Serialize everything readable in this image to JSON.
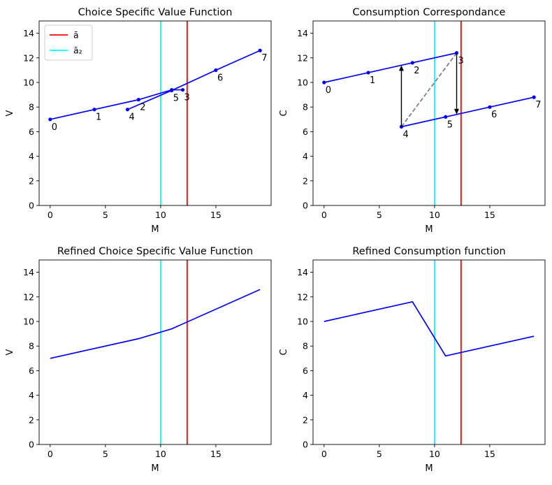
{
  "chart_data": [
    {
      "type": "line",
      "title": "Choice Specific Value Function",
      "xlabel": "M",
      "ylabel": "V",
      "xlim": [
        -1,
        20
      ],
      "ylim": [
        0,
        15
      ],
      "xticks": [
        0,
        5,
        10,
        15
      ],
      "yticks": [
        0,
        2,
        4,
        6,
        8,
        10,
        12,
        14
      ],
      "vlines": [
        {
          "x": 12.4,
          "color": "#ff0000",
          "legend_label": "ā"
        },
        {
          "x": 10,
          "color": "#00ffff",
          "legend_label": "ā₂"
        }
      ],
      "legend": {
        "position": "top-left"
      },
      "series": [
        {
          "color": "#0000ff",
          "marker": "dot",
          "x": [
            0,
            4,
            8,
            11,
            12
          ],
          "y": [
            7.0,
            7.8,
            8.6,
            9.4,
            9.4
          ]
        },
        {
          "color": "#0000ff",
          "marker": "dot",
          "x": [
            7,
            11,
            15,
            19
          ],
          "y": [
            7.8,
            9.35,
            11.0,
            12.6
          ]
        }
      ],
      "point_labels": [
        {
          "text": "0",
          "x": 0,
          "y": 7.0
        },
        {
          "text": "1",
          "x": 4,
          "y": 7.8
        },
        {
          "text": "2",
          "x": 8,
          "y": 8.6
        },
        {
          "text": "3",
          "x": 12,
          "y": 9.4
        },
        {
          "text": "4",
          "x": 7,
          "y": 7.8
        },
        {
          "text": "5",
          "x": 11,
          "y": 9.35
        },
        {
          "text": "6",
          "x": 15,
          "y": 11.0
        },
        {
          "text": "7",
          "x": 19,
          "y": 12.6
        }
      ]
    },
    {
      "type": "line",
      "title": "Consumption Correspondance",
      "xlabel": "M",
      "ylabel": "C",
      "xlim": [
        -1,
        20
      ],
      "ylim": [
        0,
        15
      ],
      "xticks": [
        0,
        5,
        10,
        15
      ],
      "yticks": [
        0,
        2,
        4,
        6,
        8,
        10,
        12,
        14
      ],
      "vlines": [
        {
          "x": 12.4,
          "color": "#ff0000"
        },
        {
          "x": 10,
          "color": "#00ffff"
        }
      ],
      "series": [
        {
          "color": "#0000ff",
          "marker": "dot",
          "x": [
            0,
            4,
            8,
            12
          ],
          "y": [
            10.0,
            10.8,
            11.6,
            12.4
          ]
        },
        {
          "color": "#0000ff",
          "marker": "dot",
          "x": [
            7,
            11,
            15,
            19
          ],
          "y": [
            6.4,
            7.2,
            8.0,
            8.8
          ]
        }
      ],
      "dashed_lines": [
        {
          "color": "#808080",
          "x": [
            7,
            12
          ],
          "y": [
            6.4,
            12.4
          ]
        }
      ],
      "arrows": [
        {
          "x": 7,
          "y_from": 6.4,
          "y_to": 11.4
        },
        {
          "x": 12,
          "y_from": 12.4,
          "y_to": 7.4
        }
      ],
      "point_labels": [
        {
          "text": "0",
          "x": 0,
          "y": 10.0
        },
        {
          "text": "1",
          "x": 4,
          "y": 10.8
        },
        {
          "text": "2",
          "x": 8,
          "y": 11.6
        },
        {
          "text": "3",
          "x": 12,
          "y": 12.4
        },
        {
          "text": "4",
          "x": 7,
          "y": 6.4
        },
        {
          "text": "5",
          "x": 11,
          "y": 7.2
        },
        {
          "text": "6",
          "x": 15,
          "y": 8.0
        },
        {
          "text": "7",
          "x": 19,
          "y": 8.8
        }
      ]
    },
    {
      "type": "line",
      "title": "Refined Choice Specific Value Function",
      "xlabel": "M",
      "ylabel": "V",
      "xlim": [
        -1,
        20
      ],
      "ylim": [
        0,
        15
      ],
      "xticks": [
        0,
        5,
        10,
        15
      ],
      "yticks": [
        0,
        2,
        4,
        6,
        8,
        10,
        12,
        14
      ],
      "vlines": [
        {
          "x": 12.4,
          "color": "#ff0000"
        },
        {
          "x": 10,
          "color": "#00ffff"
        }
      ],
      "series": [
        {
          "color": "#0000ff",
          "x": [
            0,
            8,
            11,
            19
          ],
          "y": [
            7.0,
            8.6,
            9.4,
            12.6
          ]
        }
      ]
    },
    {
      "type": "line",
      "title": "Refined Consumption function",
      "xlabel": "M",
      "ylabel": "C",
      "xlim": [
        -1,
        20
      ],
      "ylim": [
        0,
        15
      ],
      "xticks": [
        0,
        5,
        10,
        15
      ],
      "yticks": [
        0,
        2,
        4,
        6,
        8,
        10,
        12,
        14
      ],
      "vlines": [
        {
          "x": 12.4,
          "color": "#ff0000"
        },
        {
          "x": 10,
          "color": "#00ffff"
        }
      ],
      "series": [
        {
          "color": "#0000ff",
          "x": [
            0,
            8,
            11,
            19
          ],
          "y": [
            10.0,
            11.6,
            7.2,
            8.8
          ]
        }
      ]
    }
  ]
}
